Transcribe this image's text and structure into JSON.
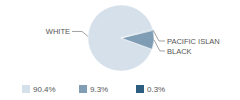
{
  "chart_data": {
    "type": "pie",
    "categories": [
      "WHITE",
      "BLACK",
      "PACIFIC ISLAN"
    ],
    "values": [
      90.4,
      9.3,
      0.3
    ],
    "value_labels": [
      "90.4%",
      "9.3%",
      "0.3%"
    ],
    "colors": [
      "#d6e0ea",
      "#7f9db5",
      "#2d5e7f"
    ],
    "legend": "bottom"
  }
}
